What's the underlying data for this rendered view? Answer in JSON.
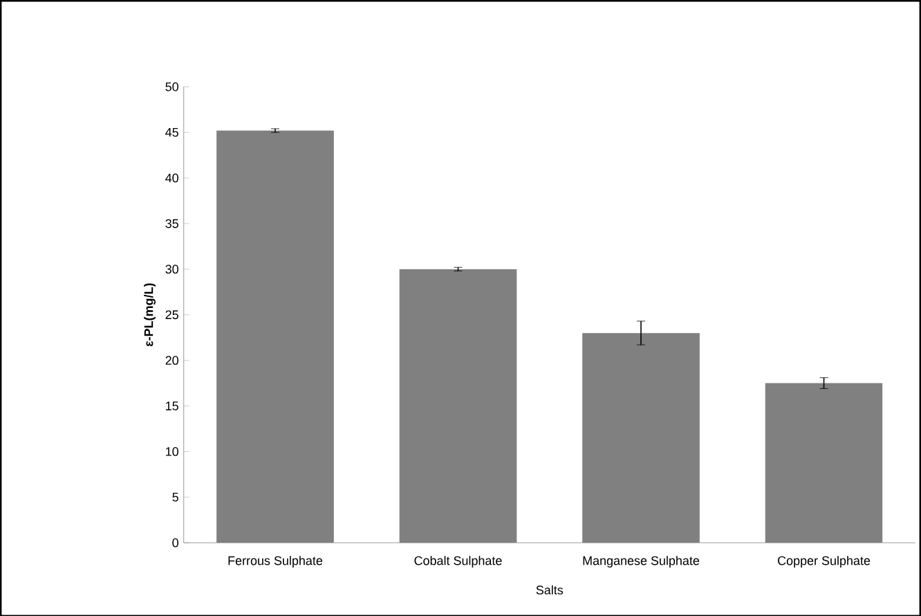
{
  "chart_data": {
    "type": "bar",
    "xlabel": "Salts",
    "ylabel": "ε-PL(mg/L)",
    "categories": [
      "Ferrous Sulphate",
      "Cobalt Sulphate",
      "Manganese Sulphate",
      "Copper Sulphate"
    ],
    "values": [
      45.2,
      30,
      23,
      17.5
    ],
    "errors": [
      0.2,
      0.2,
      1.3,
      0.6
    ],
    "color": "#808080",
    "ylim": [
      0,
      50
    ],
    "yticks": [
      0,
      5,
      10,
      15,
      20,
      25,
      30,
      35,
      40,
      45,
      50
    ],
    "grid": false
  }
}
